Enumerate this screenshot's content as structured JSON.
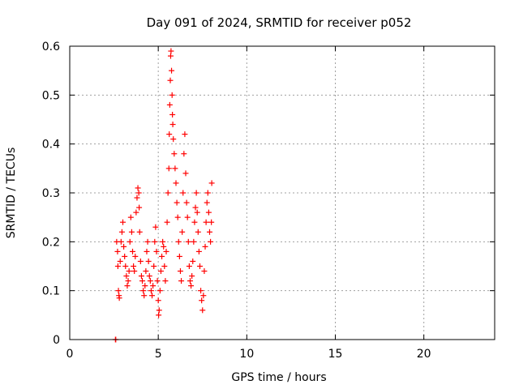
{
  "colors": {
    "series": "#ff0000",
    "axis": "#000000",
    "grid": "#a0a0a0",
    "background": "#ffffff"
  },
  "chart_data": {
    "type": "scatter",
    "title": "Day 091 of 2024, SRMTID for receiver p052",
    "xlabel": "GPS time / hours",
    "ylabel": "SRMTID / TECUs",
    "xlim": [
      0,
      24
    ],
    "ylim": [
      0,
      0.6
    ],
    "xticks": [
      0,
      5,
      10,
      15,
      20
    ],
    "yticks": [
      0,
      0.1,
      0.2,
      0.3,
      0.4,
      0.5,
      0.6
    ],
    "ytick_labels": [
      "0",
      "0.1",
      "0.2",
      "0.3",
      "0.4",
      "0.5",
      "0.6"
    ],
    "grid": true,
    "marker": "+",
    "series": [
      {
        "name": "SRMTID",
        "points": [
          [
            2.58,
            0.0
          ],
          [
            2.6,
            0.0
          ],
          [
            2.65,
            0.2
          ],
          [
            2.7,
            0.18
          ],
          [
            2.72,
            0.15
          ],
          [
            2.75,
            0.1
          ],
          [
            2.78,
            0.09
          ],
          [
            2.8,
            0.085
          ],
          [
            2.85,
            0.16
          ],
          [
            2.9,
            0.2
          ],
          [
            2.95,
            0.22
          ],
          [
            3.0,
            0.24
          ],
          [
            3.05,
            0.19
          ],
          [
            3.1,
            0.17
          ],
          [
            3.15,
            0.15
          ],
          [
            3.2,
            0.13
          ],
          [
            3.25,
            0.11
          ],
          [
            3.3,
            0.12
          ],
          [
            3.35,
            0.14
          ],
          [
            3.4,
            0.2
          ],
          [
            3.45,
            0.25
          ],
          [
            3.5,
            0.22
          ],
          [
            3.55,
            0.18
          ],
          [
            3.6,
            0.15
          ],
          [
            3.65,
            0.14
          ],
          [
            3.7,
            0.17
          ],
          [
            3.75,
            0.26
          ],
          [
            3.8,
            0.29
          ],
          [
            3.85,
            0.31
          ],
          [
            3.9,
            0.3
          ],
          [
            3.92,
            0.27
          ],
          [
            3.95,
            0.22
          ],
          [
            4.0,
            0.16
          ],
          [
            4.05,
            0.13
          ],
          [
            4.1,
            0.12
          ],
          [
            4.15,
            0.1
          ],
          [
            4.2,
            0.09
          ],
          [
            4.25,
            0.11
          ],
          [
            4.3,
            0.14
          ],
          [
            4.35,
            0.18
          ],
          [
            4.4,
            0.2
          ],
          [
            4.45,
            0.16
          ],
          [
            4.5,
            0.13
          ],
          [
            4.55,
            0.12
          ],
          [
            4.6,
            0.1
          ],
          [
            4.65,
            0.09
          ],
          [
            4.7,
            0.11
          ],
          [
            4.75,
            0.15
          ],
          [
            4.8,
            0.2
          ],
          [
            4.85,
            0.23
          ],
          [
            4.9,
            0.18
          ],
          [
            4.95,
            0.12
          ],
          [
            5.0,
            0.08
          ],
          [
            5.02,
            0.05
          ],
          [
            5.05,
            0.06
          ],
          [
            5.1,
            0.1
          ],
          [
            5.15,
            0.14
          ],
          [
            5.2,
            0.17
          ],
          [
            5.25,
            0.2
          ],
          [
            5.3,
            0.19
          ],
          [
            5.35,
            0.15
          ],
          [
            5.4,
            0.12
          ],
          [
            5.45,
            0.18
          ],
          [
            5.5,
            0.24
          ],
          [
            5.55,
            0.3
          ],
          [
            5.6,
            0.35
          ],
          [
            5.62,
            0.42
          ],
          [
            5.65,
            0.48
          ],
          [
            5.68,
            0.53
          ],
          [
            5.7,
            0.58
          ],
          [
            5.72,
            0.59
          ],
          [
            5.75,
            0.55
          ],
          [
            5.78,
            0.5
          ],
          [
            5.8,
            0.46
          ],
          [
            5.82,
            0.44
          ],
          [
            5.85,
            0.41
          ],
          [
            5.9,
            0.38
          ],
          [
            5.95,
            0.35
          ],
          [
            6.0,
            0.32
          ],
          [
            6.05,
            0.28
          ],
          [
            6.1,
            0.25
          ],
          [
            6.15,
            0.2
          ],
          [
            6.2,
            0.17
          ],
          [
            6.25,
            0.14
          ],
          [
            6.3,
            0.12
          ],
          [
            6.35,
            0.22
          ],
          [
            6.4,
            0.3
          ],
          [
            6.45,
            0.38
          ],
          [
            6.5,
            0.42
          ],
          [
            6.55,
            0.34
          ],
          [
            6.6,
            0.28
          ],
          [
            6.65,
            0.25
          ],
          [
            6.7,
            0.2
          ],
          [
            6.75,
            0.15
          ],
          [
            6.8,
            0.12
          ],
          [
            6.85,
            0.11
          ],
          [
            6.9,
            0.13
          ],
          [
            6.95,
            0.16
          ],
          [
            7.0,
            0.2
          ],
          [
            7.05,
            0.24
          ],
          [
            7.1,
            0.27
          ],
          [
            7.15,
            0.3
          ],
          [
            7.2,
            0.26
          ],
          [
            7.25,
            0.22
          ],
          [
            7.3,
            0.18
          ],
          [
            7.35,
            0.15
          ],
          [
            7.4,
            0.1
          ],
          [
            7.45,
            0.08
          ],
          [
            7.5,
            0.06
          ],
          [
            7.55,
            0.09
          ],
          [
            7.6,
            0.14
          ],
          [
            7.65,
            0.19
          ],
          [
            7.7,
            0.24
          ],
          [
            7.75,
            0.28
          ],
          [
            7.8,
            0.3
          ],
          [
            7.85,
            0.26
          ],
          [
            7.9,
            0.22
          ],
          [
            7.95,
            0.2
          ],
          [
            8.0,
            0.24
          ],
          [
            8.02,
            0.32
          ]
        ]
      }
    ]
  }
}
